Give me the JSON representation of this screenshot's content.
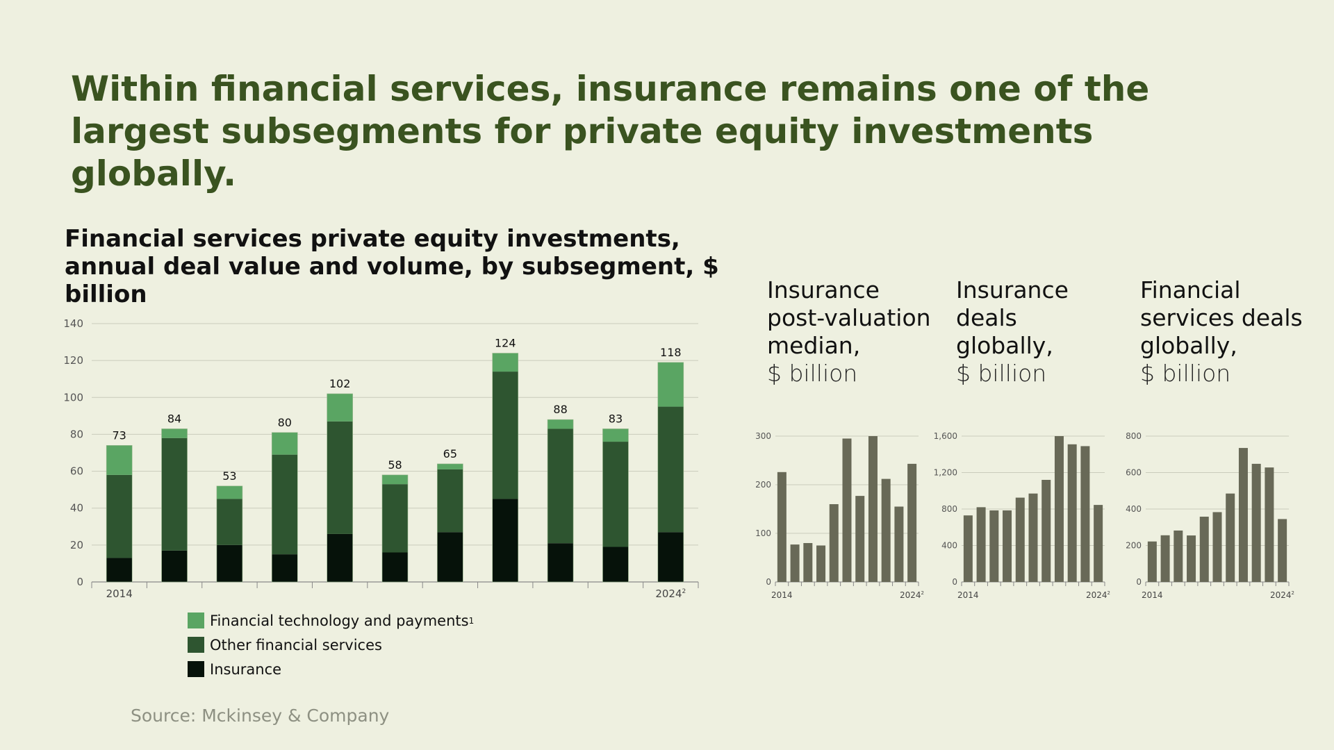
{
  "headline": "Within financial services, insurance remains one of the largest subsegments for private equity investments globally.",
  "source": "Source: Mckinsey & Company",
  "colors": {
    "fintech": "#5aa563",
    "other": "#2e5530",
    "insurance": "#06120a",
    "mini_bar": "#686957"
  },
  "chart_data": [
    {
      "type": "bar",
      "stacked": true,
      "title": "Financial services private equity investments, annual deal value and volume, by subsegment, $ billion",
      "x_first_label": "2014",
      "x_last_label": "2024",
      "x_last_footnote": "2",
      "ylim": [
        0,
        140
      ],
      "yticks": [
        0,
        20,
        40,
        60,
        80,
        100,
        120,
        140
      ],
      "grid": true,
      "legend_position": "bottom-left",
      "totals": [
        73,
        84,
        53,
        80,
        102,
        58,
        65,
        124,
        88,
        83,
        118
      ],
      "series": [
        {
          "name": "Insurance",
          "values": [
            13,
            17,
            20,
            15,
            26,
            16,
            27,
            45,
            21,
            19,
            27
          ]
        },
        {
          "name": "Other financial services",
          "values": [
            45,
            61,
            25,
            54,
            61,
            37,
            34,
            69,
            62,
            57,
            68
          ]
        },
        {
          "name": "Financial technology and payments",
          "footnote": "1",
          "values": [
            16,
            5,
            7,
            12,
            15,
            5,
            3,
            10,
            5,
            7,
            24
          ]
        }
      ]
    },
    {
      "type": "bar",
      "title_lines": [
        "Insurance",
        "post-valuation",
        "median,"
      ],
      "unit": "$ billion",
      "x_first_label": "2014",
      "x_last_label": "2024",
      "x_last_footnote": "2",
      "ylim": [
        0,
        300
      ],
      "yticks": [
        0,
        100,
        200,
        300
      ],
      "values": [
        226,
        77,
        80,
        75,
        160,
        295,
        177,
        300,
        212,
        155,
        243
      ]
    },
    {
      "type": "bar",
      "title_lines": [
        "Insurance",
        "deals",
        "globally,"
      ],
      "unit": "$ billion",
      "x_first_label": "2014",
      "x_last_label": "2024",
      "x_last_footnote": "2",
      "ylim": [
        0,
        1600
      ],
      "yticks": [
        0,
        400,
        800,
        1200,
        1600
      ],
      "yticklabels": [
        "0",
        "400",
        "800",
        "1,200",
        "1,600"
      ],
      "values": [
        730,
        820,
        785,
        785,
        925,
        970,
        1120,
        1600,
        1510,
        1490,
        845
      ]
    },
    {
      "type": "bar",
      "title_lines": [
        "Financial",
        "services deals",
        "globally,"
      ],
      "unit": "$ billion",
      "x_first_label": "2014",
      "x_last_label": "2024",
      "x_last_footnote": "2",
      "ylim": [
        0,
        800
      ],
      "yticks": [
        0,
        200,
        400,
        600,
        800
      ],
      "values": [
        222,
        256,
        282,
        255,
        358,
        383,
        485,
        735,
        648,
        628,
        345
      ]
    }
  ]
}
